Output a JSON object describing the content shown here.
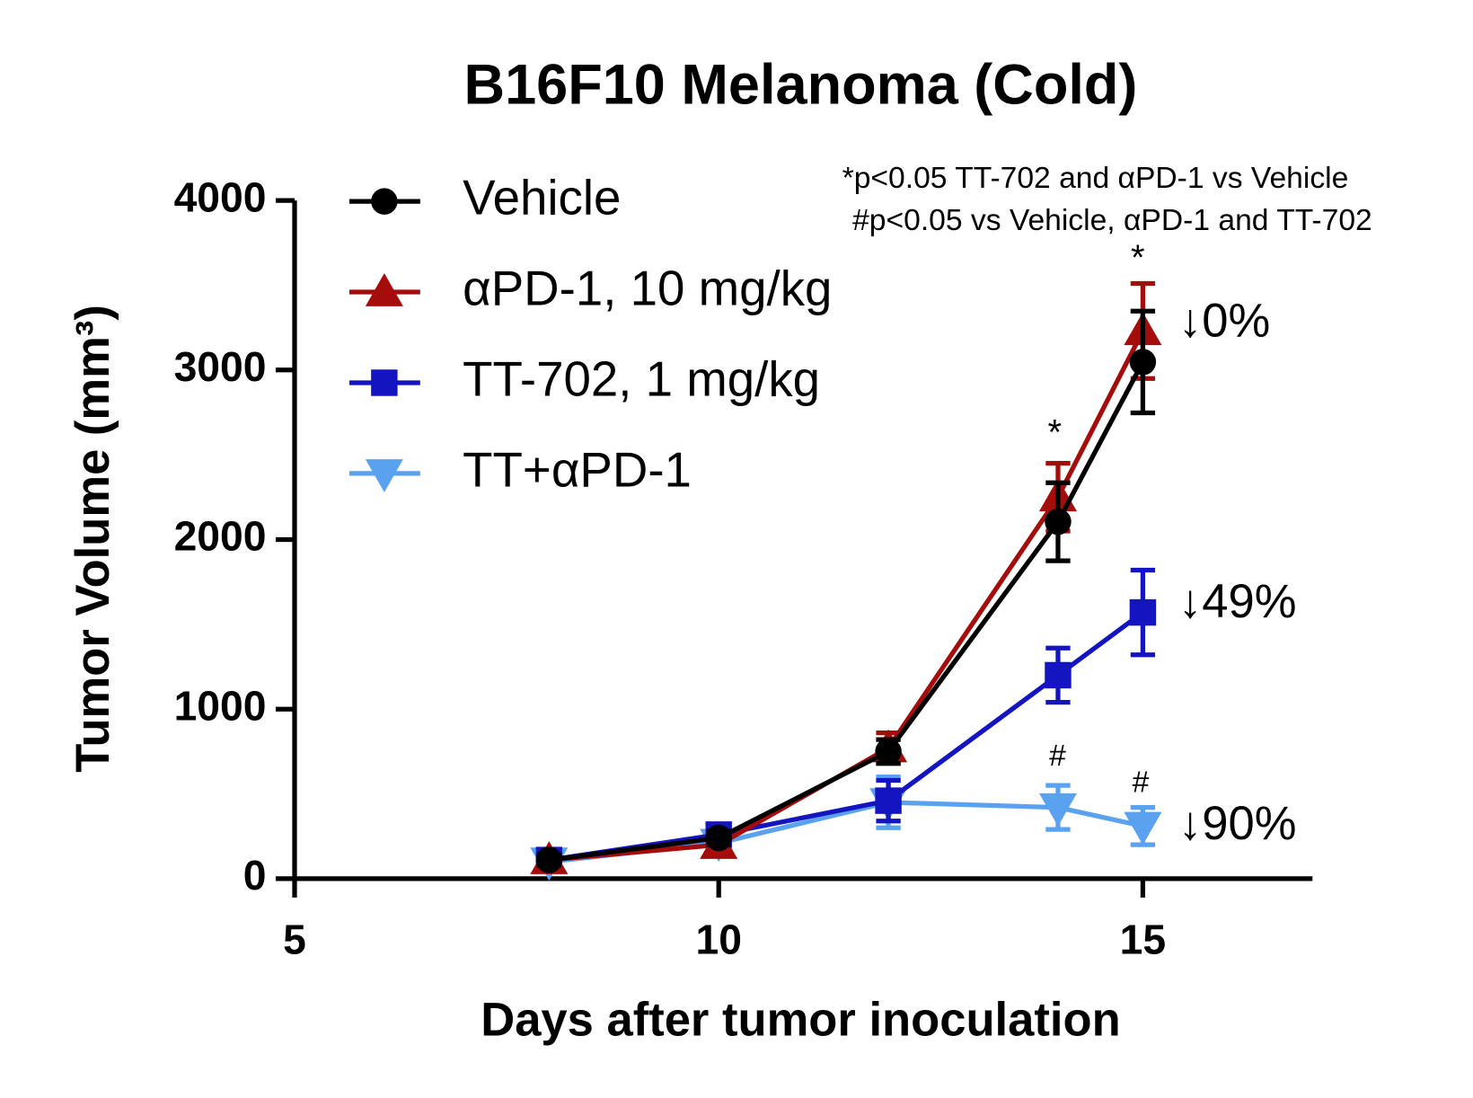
{
  "chart_data": {
    "type": "line",
    "title": "B16F10 Melanoma (Cold)",
    "x_label": "Days after tumor inoculation",
    "y_label": "Tumor Volume (mm³)",
    "xlim": [
      5,
      17
    ],
    "xticks": [
      5,
      10,
      15
    ],
    "ylim": [
      0,
      4000
    ],
    "yticks": [
      0,
      1000,
      2000,
      3000,
      4000
    ],
    "legend": "top-left",
    "series": [
      {
        "name": "Vehicle",
        "color": "#000000",
        "marker": "circle",
        "x": [
          8,
          10,
          12,
          14,
          15
        ],
        "values": [
          110,
          240,
          750,
          2105,
          3047
        ],
        "errors": [
          30,
          40,
          70,
          230,
          300
        ]
      },
      {
        "name": "αPD-1, 10 mg/kg",
        "color": "#a50d0d",
        "marker": "triangle-up",
        "x": [
          8,
          10,
          12,
          14,
          15
        ],
        "values": [
          110,
          200,
          770,
          2250,
          3230
        ],
        "errors": [
          30,
          40,
          90,
          200,
          280
        ]
      },
      {
        "name": "TT-702, 1 mg/kg",
        "color": "#1414c0",
        "marker": "square",
        "x": [
          8,
          10,
          12,
          14,
          15
        ],
        "values": [
          110,
          260,
          460,
          1200,
          1570
        ],
        "errors": [
          30,
          40,
          120,
          160,
          250
        ]
      },
      {
        "name": "TT+αPD-1",
        "color": "#5aa2f0",
        "marker": "triangle-down",
        "x": [
          8,
          10,
          12,
          14,
          15
        ],
        "values": [
          100,
          210,
          450,
          420,
          310
        ],
        "errors": [
          30,
          40,
          150,
          130,
          110
        ]
      }
    ],
    "annotations": [
      "*p<0.05 TT-702 and αPD-1 vs Vehicle",
      "#p<0.05 vs Vehicle, αPD-1 and TT-702",
      "*",
      "*",
      "#",
      "#",
      "↓0%",
      "↓49%",
      "↓90%"
    ]
  }
}
